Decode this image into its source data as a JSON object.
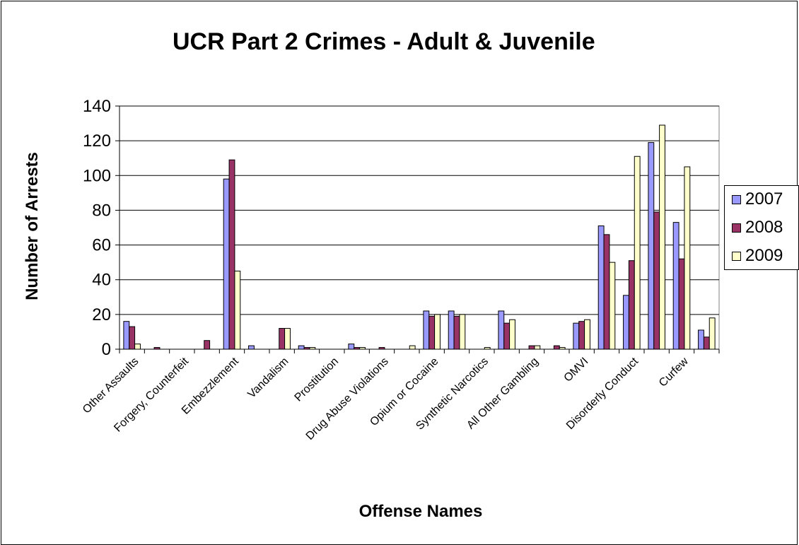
{
  "chart_data": {
    "type": "bar",
    "title": "UCR Part 2 Crimes - Adult & Juvenile",
    "xlabel": "Offense Names",
    "ylabel": "Number of Arrests",
    "ylim": [
      0,
      140
    ],
    "yticks": [
      0,
      20,
      40,
      60,
      80,
      100,
      120,
      140
    ],
    "grid": true,
    "legend_position": "right",
    "categories": [
      "Other Assaults",
      "",
      "Forgery, Counterfeit",
      "",
      "Embezzlement",
      "",
      "Vandalism",
      "",
      "Prostitution",
      "",
      "Drug Abuse Violations",
      "",
      "Opium or Cocaine",
      "",
      "Synthetic Narcotics",
      "",
      "All Other Gambling",
      "",
      "OMVI",
      "",
      "Disorderly Conduct",
      "",
      "Curfew",
      ""
    ],
    "series": [
      {
        "name": "2007",
        "color": "#9999ff",
        "values": [
          16,
          0,
          0,
          0,
          98,
          2,
          0,
          2,
          0,
          3,
          0,
          0,
          22,
          22,
          0,
          22,
          0,
          0,
          15,
          71,
          31,
          119,
          73,
          11
        ]
      },
      {
        "name": "2008",
        "color": "#993366",
        "values": [
          13,
          1,
          0,
          5,
          109,
          0,
          12,
          1,
          0,
          1,
          1,
          0,
          19,
          19,
          0,
          15,
          2,
          2,
          16,
          66,
          51,
          79,
          52,
          7
        ]
      },
      {
        "name": "2009",
        "color": "#ffffcc",
        "values": [
          3,
          0,
          0,
          0,
          45,
          0,
          12,
          1,
          0,
          1,
          0,
          2,
          20,
          20,
          1,
          17,
          2,
          1,
          17,
          50,
          111,
          129,
          105,
          18
        ]
      }
    ]
  }
}
